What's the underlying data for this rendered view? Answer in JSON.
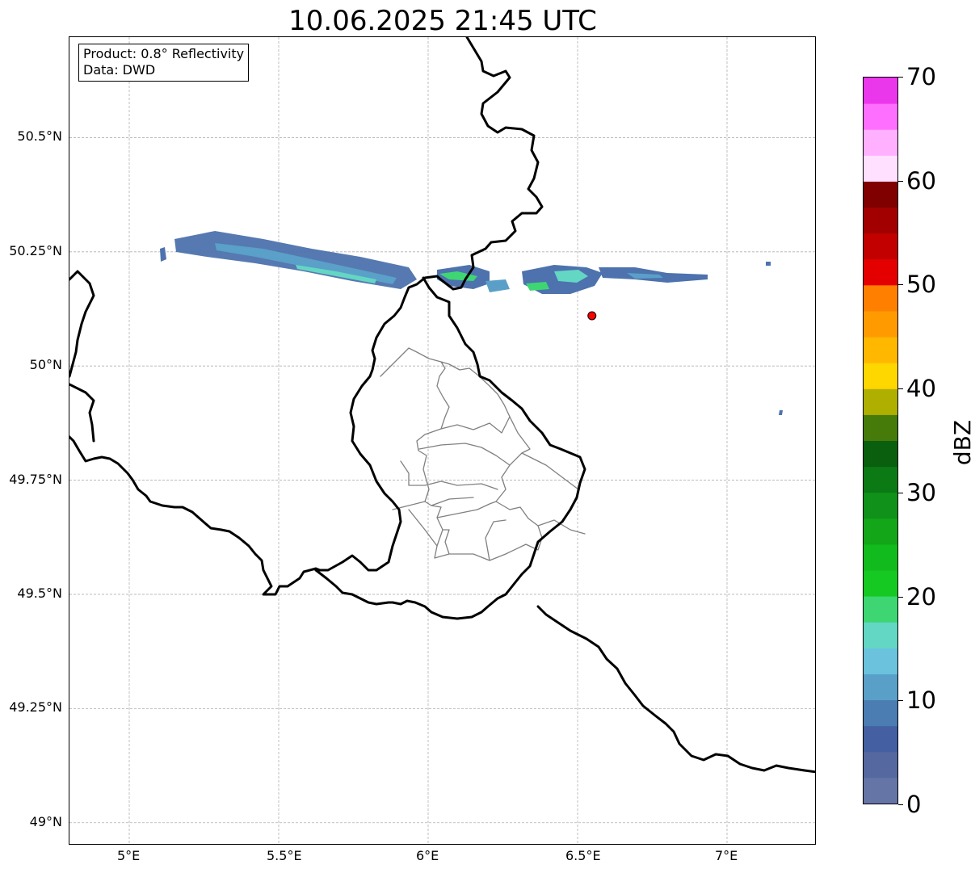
{
  "title": "10.06.2025 21:45 UTC",
  "info": {
    "product": "Product: 0.8° Reflectivity",
    "data": "Data: DWD"
  },
  "map": {
    "lon_range": [
      4.8,
      7.3
    ],
    "lat_range": [
      48.95,
      50.72
    ],
    "lat_ticks": [
      {
        "value": 50.5,
        "label": "50.5°N"
      },
      {
        "value": 50.25,
        "label": "50.25°N"
      },
      {
        "value": 50.0,
        "label": "50°N"
      },
      {
        "value": 49.75,
        "label": "49.75°N"
      },
      {
        "value": 49.5,
        "label": "49.5°N"
      },
      {
        "value": 49.25,
        "label": "49.25°N"
      },
      {
        "value": 49.0,
        "label": "49°N"
      }
    ],
    "lon_ticks": [
      {
        "value": 5.0,
        "label": "5°E"
      },
      {
        "value": 5.5,
        "label": "5.5°E"
      },
      {
        "value": 6.0,
        "label": "6°E"
      },
      {
        "value": 6.5,
        "label": "6.5°E"
      },
      {
        "value": 7.0,
        "label": "7°E"
      }
    ],
    "grid": "dashed",
    "radar_site": {
      "lon": 6.548,
      "lat": 50.11,
      "color": "#ff0000"
    },
    "border_color": "#000000",
    "district_color": "#808080"
  },
  "colorbar": {
    "label": "dBZ",
    "min": 0,
    "max": 70,
    "step": 2.5,
    "ticks": [
      {
        "value": 0,
        "label": "0"
      },
      {
        "value": 10,
        "label": "10"
      },
      {
        "value": 20,
        "label": "20"
      },
      {
        "value": 30,
        "label": "30"
      },
      {
        "value": 40,
        "label": "40"
      },
      {
        "value": 50,
        "label": "50"
      },
      {
        "value": 60,
        "label": "60"
      },
      {
        "value": 70,
        "label": "70"
      }
    ],
    "colors": [
      "#6575a5",
      "#5569a0",
      "#445fa2",
      "#4b7cb2",
      "#5a9fc8",
      "#6bc2dc",
      "#63d6c4",
      "#3ed673",
      "#15c922",
      "#12bb1d",
      "#13a619",
      "#0f911a",
      "#0b7a14",
      "#0a5f0e",
      "#467b0a",
      "#afaf00",
      "#ffd700",
      "#ffb700",
      "#ff9b00",
      "#ff8000",
      "#e40000",
      "#c20000",
      "#a20000",
      "#800000",
      "#ffe0ff",
      "#ffb1ff",
      "#ff6fff",
      "#eb37eb"
    ]
  }
}
